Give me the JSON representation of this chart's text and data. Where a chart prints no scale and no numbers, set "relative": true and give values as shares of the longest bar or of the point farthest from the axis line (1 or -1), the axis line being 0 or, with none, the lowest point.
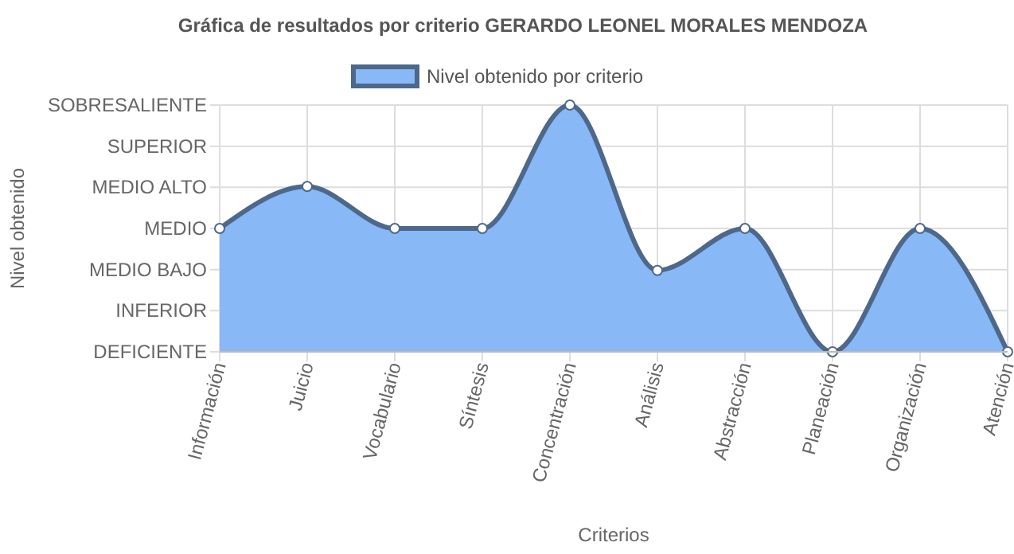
{
  "chart_data": {
    "type": "area",
    "title": "Gráfica de resultados por criterio GERARDO LEONEL MORALES MENDOZA",
    "xlabel": "Criterios",
    "categories": [
      "Información",
      "Juicio",
      "Vocabulario",
      "Síntesis",
      "Concentración",
      "Análisis",
      "Abstracción",
      "Planeación",
      "Organización",
      "Atención"
    ],
    "series": [
      {
        "name": "Nivel obtenido por criterio",
        "color": "#88b8f5",
        "values": [
          0.5,
          0.67,
          0.5,
          0.5,
          1,
          0.33,
          0.5,
          0,
          0.5,
          0
        ]
      }
    ],
    "relative": true,
    "annotations": [
      "DEFICIENTE",
      "INFERIOR",
      "MEDIO BAJO",
      "MEDIO",
      "MEDIO ALTO",
      "SUPERIOR",
      "SOBRESALIENTE",
      {
        "text": "Nivel obtenido"
      }
    ],
    "grid": true,
    "legend": "top",
    "marker": "circle"
  }
}
